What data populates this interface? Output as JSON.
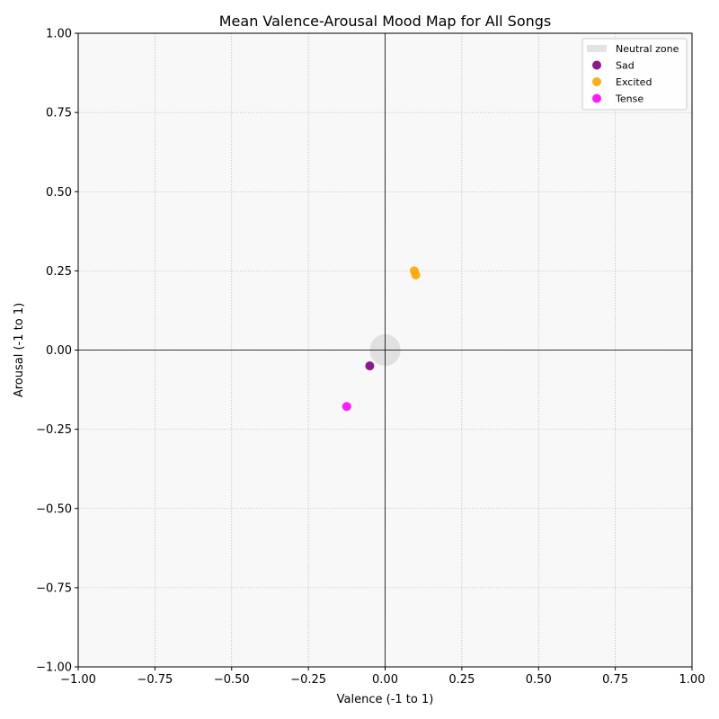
{
  "chart_data": {
    "type": "scatter",
    "title": "Mean Valence-Arousal Mood Map for All Songs",
    "xlabel": "Valence (-1 to 1)",
    "ylabel": "Arousal (-1 to 1)",
    "xlim": [
      -1,
      1
    ],
    "ylim": [
      -1,
      1
    ],
    "xticks": [
      -1.0,
      -0.75,
      -0.5,
      -0.25,
      0.0,
      0.25,
      0.5,
      0.75,
      1.0
    ],
    "yticks": [
      -1.0,
      -0.75,
      -0.5,
      -0.25,
      0.0,
      0.25,
      0.5,
      0.75,
      1.0
    ],
    "xtick_labels": [
      "−1.00",
      "−0.75",
      "−0.50",
      "−0.25",
      "0.00",
      "0.25",
      "0.50",
      "0.75",
      "1.00"
    ],
    "ytick_labels": [
      "−1.00",
      "−0.75",
      "−0.50",
      "−0.25",
      "0.00",
      "0.25",
      "0.50",
      "0.75",
      "1.00"
    ],
    "grid": true,
    "background_color": "#f8f8f8",
    "legend_position": "top-right",
    "neutral_zone": {
      "label": "Neutral zone",
      "center": [
        0,
        0
      ],
      "radius": 0.05,
      "color": "#cccccc"
    },
    "series": [
      {
        "name": "Sad",
        "color": "#800080",
        "points": [
          {
            "x": -0.05,
            "y": -0.05
          }
        ]
      },
      {
        "name": "Excited",
        "color": "#ffa500",
        "points": [
          {
            "x": 0.095,
            "y": 0.25
          },
          {
            "x": 0.1,
            "y": 0.237
          }
        ]
      },
      {
        "name": "Tense",
        "color": "#ff00ff",
        "points": [
          {
            "x": -0.125,
            "y": -0.178
          }
        ]
      }
    ]
  }
}
